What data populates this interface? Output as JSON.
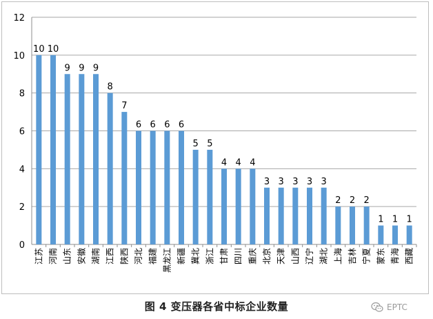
{
  "chart_data": {
    "type": "bar",
    "caption": "图 4 变压器各省中标企业数量",
    "categories": [
      "江苏",
      "河南",
      "山东",
      "安徽",
      "湖南",
      "江西",
      "陕西",
      "河北",
      "福建",
      "黑龙江",
      "新疆",
      "冀北",
      "浙江",
      "甘肃",
      "四川",
      "重庆",
      "北京",
      "天津",
      "山西",
      "辽宁",
      "湖北",
      "上海",
      "吉林",
      "宁夏",
      "蒙东",
      "青海",
      "西藏"
    ],
    "values": [
      10,
      10,
      9,
      9,
      9,
      8,
      7,
      6,
      6,
      6,
      6,
      5,
      5,
      4,
      4,
      4,
      3,
      3,
      3,
      3,
      3,
      2,
      2,
      2,
      1,
      1,
      1
    ],
    "ylim": [
      0,
      12
    ],
    "yticks": [
      0,
      2,
      4,
      6,
      8,
      10,
      12
    ],
    "grid": true,
    "legend": "none",
    "bar_color": "#5B9BD5",
    "data_labels": true
  },
  "watermark": {
    "icon": "wechat-icon",
    "text": "EPTC"
  }
}
